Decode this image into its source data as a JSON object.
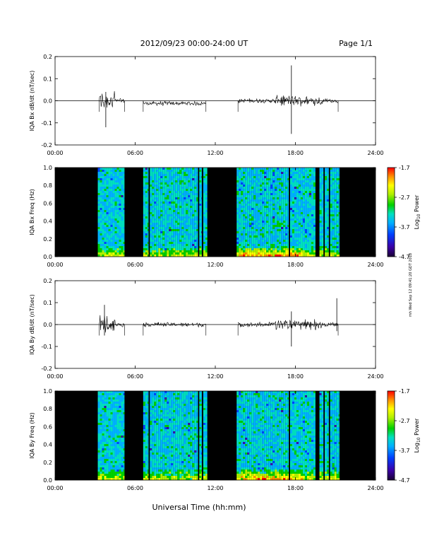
{
  "header": {
    "title": "2012/09/23  00:00-24:00 UT",
    "page_label": "Page 1/1"
  },
  "footer": {
    "x_axis_label": "Universal Time (hh:mm)"
  },
  "side_note": "mh Wed Sep 12 09:41:20 GDT 2018",
  "colors": {
    "background": "#ffffff",
    "axis": "#000000",
    "spectrogram_gap": "#000000",
    "colormap": [
      "#1a0033",
      "#3b00a8",
      "#0040ff",
      "#00b0ff",
      "#00e0c0",
      "#00d000",
      "#b0f000",
      "#ffff00",
      "#ff9000",
      "#ff0000"
    ]
  },
  "chart_data": [
    {
      "type": "line",
      "panel": "bx_ts",
      "ylabel": "IQA Bx dB/dt (nT/sec)",
      "ylim": [
        -0.2,
        0.2
      ],
      "y_ticks": [
        "0.2",
        "0.1",
        "0.0",
        "-0.1",
        "-0.2"
      ],
      "y_tick_values": [
        0.2,
        0.1,
        0.0,
        -0.1,
        -0.2
      ],
      "xlim_hours": [
        0,
        24
      ],
      "x_ticks": [
        "00:00",
        "06:00",
        "12:00",
        "18:00",
        "24:00"
      ],
      "x_tick_values": [
        0,
        6,
        12,
        18,
        24
      ],
      "data_segments_hours": [
        [
          3.3,
          5.2
        ],
        [
          6.6,
          11.3
        ],
        [
          13.7,
          21.2
        ]
      ],
      "peak_amplitude": [
        {
          "x": 3.8,
          "min": -0.12,
          "max": 0.04
        },
        {
          "x": 17.7,
          "min": -0.15,
          "max": 0.16
        }
      ]
    },
    {
      "type": "heatmap",
      "panel": "bx_spec",
      "ylabel": "IQA Bx Freq (Hz)",
      "ylim": [
        0.0,
        1.0
      ],
      "y_ticks": [
        "1.0",
        "0.8",
        "0.6",
        "0.4",
        "0.2",
        "0.0"
      ],
      "y_tick_values": [
        1.0,
        0.8,
        0.6,
        0.4,
        0.2,
        0.0
      ],
      "xlim_hours": [
        0,
        24
      ],
      "x_ticks": [
        "00:00",
        "06:00",
        "12:00",
        "18:00",
        "24:00"
      ],
      "x_tick_values": [
        0,
        6,
        12,
        18,
        24
      ],
      "colorbar": {
        "label": "Log10 Power",
        "label_main": "Log",
        "label_sub": "10",
        "label_tail": " Power",
        "range": [
          -4.7,
          -1.7
        ],
        "ticks": [
          "-1.7",
          "-2.7",
          "-3.7",
          "-4.7"
        ],
        "tick_values": [
          -1.7,
          -2.7,
          -3.7,
          -4.7
        ]
      },
      "gaps_hours": [
        [
          0,
          3.2
        ],
        [
          5.2,
          6.6
        ],
        [
          7.0,
          7.1
        ],
        [
          10.7,
          10.8
        ],
        [
          11.0,
          11.1
        ],
        [
          11.4,
          13.6
        ],
        [
          17.5,
          17.6
        ],
        [
          19.5,
          19.8
        ],
        [
          20.1,
          20.2
        ],
        [
          20.5,
          20.6
        ],
        [
          21.3,
          24
        ]
      ]
    },
    {
      "type": "line",
      "panel": "by_ts",
      "ylabel": "IQA By dB/dt (nT/sec)",
      "ylim": [
        -0.2,
        0.2
      ],
      "y_ticks": [
        "0.2",
        "0.1",
        "0.0",
        "-0.1",
        "-0.2"
      ],
      "y_tick_values": [
        0.2,
        0.1,
        0.0,
        -0.1,
        -0.2
      ],
      "xlim_hours": [
        0,
        24
      ],
      "x_ticks": [
        "00:00",
        "06:00",
        "12:00",
        "18:00",
        "24:00"
      ],
      "x_tick_values": [
        0,
        6,
        12,
        18,
        24
      ],
      "data_segments_hours": [
        [
          3.3,
          5.2
        ],
        [
          6.6,
          11.3
        ],
        [
          13.7,
          21.2
        ]
      ],
      "peak_amplitude": [
        {
          "x": 3.7,
          "min": -0.05,
          "max": 0.09
        },
        {
          "x": 17.7,
          "min": -0.1,
          "max": 0.06
        },
        {
          "x": 21.1,
          "min": -0.03,
          "max": 0.12
        }
      ]
    },
    {
      "type": "heatmap",
      "panel": "by_spec",
      "ylabel": "IQA By Freq (Hz)",
      "ylim": [
        0.0,
        1.0
      ],
      "y_ticks": [
        "1.0",
        "0.8",
        "0.6",
        "0.4",
        "0.2",
        "0.0"
      ],
      "y_tick_values": [
        1.0,
        0.8,
        0.6,
        0.4,
        0.2,
        0.0
      ],
      "xlim_hours": [
        0,
        24
      ],
      "x_ticks": [
        "00:00",
        "06:00",
        "12:00",
        "18:00",
        "24:00"
      ],
      "x_tick_values": [
        0,
        6,
        12,
        18,
        24
      ],
      "colorbar": {
        "label": "Log10 Power",
        "label_main": "Log",
        "label_sub": "10",
        "label_tail": " Power",
        "range": [
          -4.7,
          -1.7
        ],
        "ticks": [
          "-1.7",
          "-2.7",
          "-3.7",
          "-4.7"
        ],
        "tick_values": [
          -1.7,
          -2.7,
          -3.7,
          -4.7
        ]
      },
      "gaps_hours": [
        [
          0,
          3.2
        ],
        [
          5.2,
          6.6
        ],
        [
          7.0,
          7.1
        ],
        [
          10.7,
          10.8
        ],
        [
          11.0,
          11.1
        ],
        [
          11.4,
          13.6
        ],
        [
          17.5,
          17.6
        ],
        [
          19.5,
          19.8
        ],
        [
          20.1,
          20.2
        ],
        [
          20.5,
          20.6
        ],
        [
          21.3,
          24
        ]
      ]
    }
  ]
}
